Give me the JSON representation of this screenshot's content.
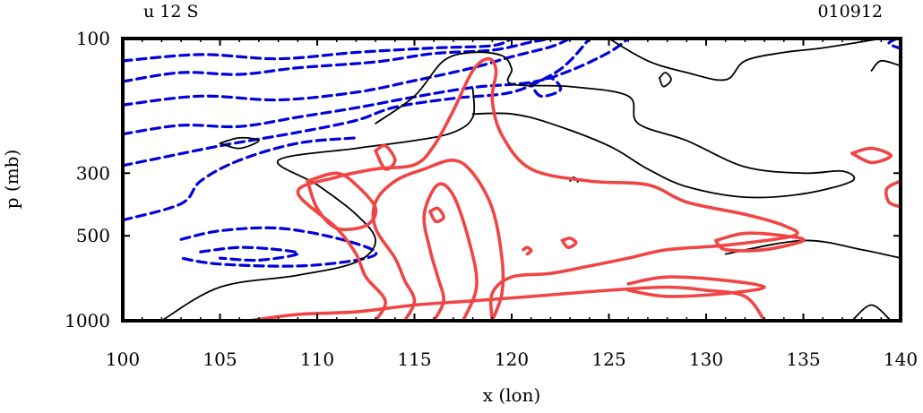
{
  "chart_data": {
    "type": "contour",
    "title_left": "u 12 S",
    "title_right": "010912",
    "xlabel": "x (lon)",
    "ylabel": "p (mb)",
    "xlim": [
      100,
      140
    ],
    "ylim": [
      1000,
      100
    ],
    "yscale": "log",
    "x_ticks": [
      100,
      105,
      110,
      115,
      120,
      125,
      130,
      135,
      140
    ],
    "y_ticks": [
      1000,
      500,
      300,
      100
    ],
    "colors": {
      "negative": "#0000dd",
      "positive": "#f04545",
      "zero": "#000000",
      "frame": "#000000"
    },
    "contours": [
      {
        "style": "negative",
        "points": [
          [
            100,
            100
          ],
          [
            120,
            100
          ]
        ]
      },
      {
        "style": "negative",
        "points": [
          [
            100,
            120
          ],
          [
            104,
            114
          ],
          [
            108,
            118
          ],
          [
            112,
            112
          ],
          [
            116,
            108
          ],
          [
            119,
            106
          ],
          [
            120,
            100
          ]
        ]
      },
      {
        "style": "negative",
        "points": [
          [
            100,
            142
          ],
          [
            103,
            132
          ],
          [
            106,
            134
          ],
          [
            109,
            127
          ],
          [
            113,
            121
          ],
          [
            116,
            113
          ],
          [
            119,
            110
          ],
          [
            121,
            103
          ],
          [
            122,
            100
          ]
        ]
      },
      {
        "style": "negative",
        "points": [
          [
            100,
            172
          ],
          [
            104,
            160
          ],
          [
            108,
            165
          ],
          [
            112,
            155
          ],
          [
            115,
            141
          ],
          [
            118,
            127
          ],
          [
            120,
            116
          ],
          [
            122,
            107
          ],
          [
            123,
            100
          ]
        ]
      },
      {
        "style": "negative",
        "points": [
          [
            100,
            218
          ],
          [
            103,
            203
          ],
          [
            106,
            205
          ],
          [
            109,
            190
          ],
          [
            112,
            176
          ],
          [
            115,
            161
          ],
          [
            118,
            149
          ],
          [
            121,
            143
          ],
          [
            123,
            130
          ],
          [
            125,
            112
          ],
          [
            126,
            100
          ]
        ]
      },
      {
        "style": "negative",
        "points": [
          [
            100,
            282
          ],
          [
            105,
            240
          ],
          [
            109,
            215
          ],
          [
            112,
            195
          ],
          [
            114,
            175
          ],
          [
            117,
            163
          ],
          [
            120,
            155
          ],
          [
            122,
            135
          ],
          [
            123,
            120
          ],
          [
            124,
            100
          ]
        ]
      },
      {
        "style": "negative",
        "points": [
          [
            100,
            440
          ],
          [
            103,
            385
          ],
          [
            104,
            320
          ],
          [
            106,
            270
          ],
          [
            109,
            235
          ],
          [
            112,
            225
          ]
        ]
      },
      {
        "style": "negative",
        "points": [
          [
            103,
            515
          ],
          [
            105,
            480
          ],
          [
            108,
            470
          ],
          [
            111,
            510
          ],
          [
            113,
            570
          ],
          [
            112,
            610
          ],
          [
            109,
            640
          ],
          [
            105,
            630
          ],
          [
            103,
            600
          ]
        ]
      },
      {
        "style": "negative",
        "points": [
          [
            104,
            570
          ],
          [
            106,
            550
          ],
          [
            108,
            560
          ],
          [
            109,
            580
          ],
          [
            107,
            610
          ],
          [
            105,
            600
          ]
        ]
      },
      {
        "style": "negative",
        "points": [
          [
            121,
            145
          ],
          [
            122,
            138
          ],
          [
            122.5,
            152
          ],
          [
            121.5,
            160
          ],
          [
            121,
            145
          ]
        ]
      },
      {
        "style": "negative",
        "points": [
          [
            139.8,
            100
          ],
          [
            139.4,
            104
          ],
          [
            139.9,
            108
          ]
        ]
      },
      {
        "style": "zero",
        "points": [
          [
            102,
            1000
          ],
          [
            105,
            760
          ],
          [
            109,
            690
          ],
          [
            112,
            620
          ],
          [
            113,
            520
          ],
          [
            112,
            420
          ],
          [
            110,
            330
          ],
          [
            108,
            270
          ],
          [
            112,
            245
          ],
          [
            115,
            230
          ],
          [
            117,
            215
          ],
          [
            118,
            190
          ],
          [
            118,
            150
          ]
        ]
      },
      {
        "style": "zero",
        "points": [
          [
            113,
            200
          ],
          [
            115,
            160
          ],
          [
            116.5,
            120
          ],
          [
            118,
            112
          ],
          [
            119.5,
            115
          ],
          [
            120,
            128
          ],
          [
            120,
            145
          ],
          [
            123,
            148
          ],
          [
            126,
            160
          ],
          [
            126.5,
            200
          ],
          [
            129,
            230
          ],
          [
            132,
            285
          ],
          [
            135,
            300
          ],
          [
            137,
            295
          ],
          [
            137.5,
            320
          ],
          [
            135,
            355
          ],
          [
            132,
            365
          ],
          [
            129,
            335
          ],
          [
            127,
            290
          ],
          [
            125,
            240
          ],
          [
            122,
            200
          ],
          [
            120,
            185
          ],
          [
            118,
            185
          ]
        ]
      },
      {
        "style": "zero",
        "points": [
          [
            125,
            100
          ],
          [
            127,
            120
          ],
          [
            129,
            132
          ],
          [
            131,
            140
          ],
          [
            132,
            120
          ],
          [
            134,
            112
          ],
          [
            136,
            108
          ],
          [
            139,
            100
          ]
        ]
      },
      {
        "style": "zero",
        "points": [
          [
            105,
            235
          ],
          [
            106,
            225
          ],
          [
            107,
            230
          ],
          [
            106,
            245
          ],
          [
            105,
            235
          ]
        ]
      },
      {
        "style": "zero",
        "points": [
          [
            127.6,
            138
          ],
          [
            127.9,
            132
          ],
          [
            128.2,
            140
          ],
          [
            127.8,
            148
          ],
          [
            127.6,
            138
          ]
        ]
      },
      {
        "style": "zero",
        "points": [
          [
            123,
            320
          ],
          [
            123.2,
            310
          ],
          [
            123.4,
            322
          ]
        ]
      },
      {
        "style": "zero",
        "points": [
          [
            131,
            580
          ],
          [
            135,
            520
          ],
          [
            138,
            560
          ],
          [
            140,
            600
          ]
        ]
      },
      {
        "style": "zero",
        "points": [
          [
            138.5,
            130
          ],
          [
            139,
            120
          ],
          [
            140,
            125
          ]
        ]
      },
      {
        "style": "zero",
        "points": [
          [
            137.5,
            1000
          ],
          [
            138.5,
            880
          ],
          [
            139.5,
            1000
          ]
        ]
      },
      {
        "style": "positive",
        "points": [
          [
            106.5,
            1000
          ],
          [
            109,
            950
          ],
          [
            112,
            930
          ],
          [
            115,
            880
          ],
          [
            118,
            850
          ],
          [
            121,
            820
          ],
          [
            125,
            780
          ],
          [
            128,
            760
          ],
          [
            130,
            780
          ],
          [
            132,
            820
          ],
          [
            133,
            1000
          ]
        ]
      },
      {
        "style": "positive",
        "points": [
          [
            113,
            1000
          ],
          [
            113.5,
            850
          ],
          [
            112.5,
            700
          ],
          [
            112,
            580
          ],
          [
            111,
            470
          ],
          [
            109,
            350
          ],
          [
            111,
            310
          ],
          [
            113,
            290
          ],
          [
            115,
            280
          ],
          [
            116,
            240
          ],
          [
            117,
            180
          ],
          [
            118,
            130
          ],
          [
            118.8,
            118
          ],
          [
            119.2,
            130
          ],
          [
            119,
            165
          ],
          [
            119.5,
            220
          ],
          [
            121,
            290
          ],
          [
            124,
            320
          ],
          [
            127,
            330
          ],
          [
            129,
            380
          ],
          [
            132,
            420
          ],
          [
            134,
            460
          ],
          [
            134.5,
            500
          ],
          [
            131,
            540
          ],
          [
            128,
            560
          ],
          [
            126,
            600
          ],
          [
            124,
            640
          ],
          [
            122,
            680
          ],
          [
            120,
            700
          ],
          [
            119,
            800
          ],
          [
            119,
            1000
          ]
        ]
      },
      {
        "style": "positive",
        "points": [
          [
            114.5,
            1000
          ],
          [
            115,
            850
          ],
          [
            114.5,
            720
          ],
          [
            114,
            600
          ],
          [
            113,
            470
          ],
          [
            113,
            380
          ],
          [
            114,
            320
          ],
          [
            115.5,
            290
          ],
          [
            117,
            270
          ],
          [
            118,
            300
          ],
          [
            119,
            400
          ],
          [
            119.5,
            600
          ],
          [
            119.5,
            800
          ],
          [
            119,
            1000
          ]
        ]
      },
      {
        "style": "positive",
        "points": [
          [
            116,
            1000
          ],
          [
            116.5,
            850
          ],
          [
            116.2,
            700
          ],
          [
            115.8,
            560
          ],
          [
            115.5,
            420
          ],
          [
            116.2,
            330
          ],
          [
            117,
            360
          ],
          [
            117.8,
            520
          ],
          [
            118.2,
            750
          ],
          [
            117.5,
            1000
          ]
        ]
      },
      {
        "style": "positive",
        "points": [
          [
            115.8,
            410
          ],
          [
            116.2,
            400
          ],
          [
            116.5,
            430
          ],
          [
            116.1,
            445
          ],
          [
            115.8,
            410
          ]
        ]
      },
      {
        "style": "positive",
        "points": [
          [
            109.5,
            320
          ],
          [
            111,
            300
          ],
          [
            112,
            330
          ],
          [
            113,
            400
          ],
          [
            112.5,
            460
          ],
          [
            111,
            470
          ],
          [
            110,
            400
          ],
          [
            109.5,
            320
          ]
        ]
      },
      {
        "style": "positive",
        "points": [
          [
            113,
            250
          ],
          [
            113.5,
            240
          ],
          [
            114,
            270
          ],
          [
            113.5,
            290
          ],
          [
            113,
            250
          ]
        ]
      },
      {
        "style": "positive",
        "points": [
          [
            126,
            740
          ],
          [
            128,
            700
          ],
          [
            131,
            720
          ],
          [
            133,
            760
          ],
          [
            131,
            800
          ],
          [
            128,
            820
          ],
          [
            126,
            780
          ]
        ]
      },
      {
        "style": "positive",
        "points": [
          [
            130.5,
            520
          ],
          [
            132,
            490
          ],
          [
            134,
            500
          ],
          [
            135,
            520
          ],
          [
            133,
            560
          ],
          [
            131,
            560
          ],
          [
            130.5,
            520
          ]
        ]
      },
      {
        "style": "positive",
        "points": [
          [
            137.5,
            255
          ],
          [
            138.5,
            245
          ],
          [
            139.5,
            260
          ],
          [
            138.5,
            275
          ],
          [
            137.5,
            255
          ]
        ]
      },
      {
        "style": "positive",
        "points": [
          [
            140,
            320
          ],
          [
            139.3,
            340
          ],
          [
            139.4,
            380
          ],
          [
            140,
            395
          ]
        ]
      },
      {
        "style": "positive",
        "points": [
          [
            120.6,
            560
          ],
          [
            120.8,
            550
          ],
          [
            121,
            565
          ],
          [
            120.8,
            580
          ]
        ]
      },
      {
        "style": "positive",
        "points": [
          [
            122.6,
            520
          ],
          [
            123,
            510
          ],
          [
            123.3,
            530
          ],
          [
            122.9,
            550
          ],
          [
            122.6,
            520
          ]
        ]
      }
    ]
  }
}
